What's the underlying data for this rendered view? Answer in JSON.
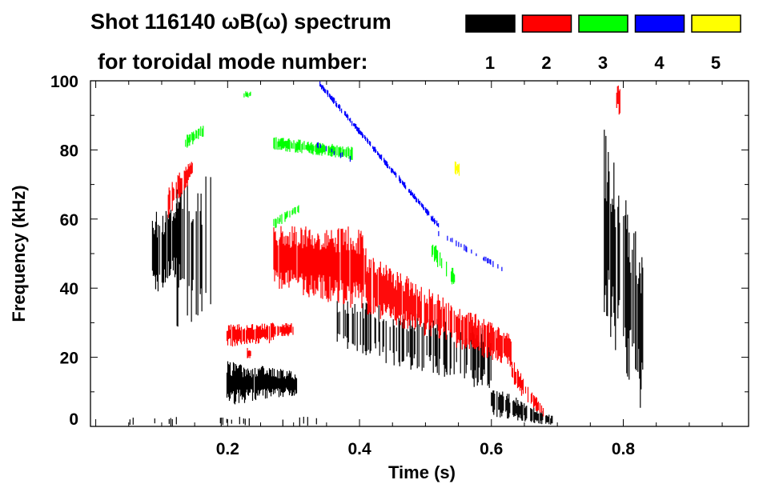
{
  "chart_data": {
    "type": "heatmap",
    "title": "Shot 116140 ωB(ω) spectrum",
    "subtitle": "for toroidal mode number:",
    "xlabel": "Time (s)",
    "ylabel": "Frequency (kHz)",
    "xlim": [
      -0.008,
      0.99
    ],
    "ylim": [
      0,
      100
    ],
    "xticks": [
      0.2,
      0.4,
      0.6,
      0.8
    ],
    "xtick_labels": [
      "0.2",
      "0.4",
      "0.6",
      "0.8"
    ],
    "yticks": [
      0,
      20,
      40,
      60,
      80,
      100
    ],
    "ytick_labels": [
      "0",
      "20",
      "40",
      "60",
      "80",
      "100"
    ],
    "legend": [
      {
        "label": "1",
        "color": "#000000"
      },
      {
        "label": "2",
        "color": "#ff0000"
      },
      {
        "label": "3",
        "color": "#00ff00"
      },
      {
        "label": "4",
        "color": "#0000ff"
      },
      {
        "label": "5",
        "color": "#ffff00"
      }
    ],
    "legend_placement": "top-right",
    "regions": [
      {
        "mode": 1,
        "t": [
          0.086,
          0.128
        ],
        "f_start": [
          37,
          62
        ],
        "f_end": [
          42,
          66
        ],
        "density": 0.9
      },
      {
        "mode": 1,
        "t": [
          0.116,
          0.177
        ],
        "f_start": [
          29,
          72
        ],
        "f_end": [
          28,
          75
        ],
        "density": 0.45
      },
      {
        "mode": 1,
        "t": [
          0.199,
          0.305
        ],
        "f_start": [
          6,
          19
        ],
        "f_end": [
          9,
          16
        ],
        "density": 0.95
      },
      {
        "mode": 1,
        "t": [
          0.365,
          0.6
        ],
        "f_start": [
          22,
          38
        ],
        "f_end": [
          10,
          28
        ],
        "density": 0.5
      },
      {
        "mode": 1,
        "t": [
          0.6,
          0.693
        ],
        "f_start": [
          3,
          12
        ],
        "f_end": [
          0,
          3
        ],
        "density": 0.8
      },
      {
        "mode": 1,
        "t": [
          0.77,
          0.83
        ],
        "f_start": [
          30,
          87
        ],
        "f_end": [
          3,
          50
        ],
        "density": 0.7
      },
      {
        "mode": 1,
        "t": [
          0.03,
          0.36
        ],
        "f_start": [
          0,
          3
        ],
        "f_end": [
          0,
          3
        ],
        "density": 0.08
      },
      {
        "mode": 2,
        "t": [
          0.11,
          0.147
        ],
        "f_start": [
          60,
          70
        ],
        "f_end": [
          72,
          78
        ],
        "density": 0.7
      },
      {
        "mode": 2,
        "t": [
          0.199,
          0.27
        ],
        "f_start": [
          23,
          30
        ],
        "f_end": [
          24,
          30
        ],
        "density": 0.9
      },
      {
        "mode": 2,
        "t": [
          0.23,
          0.235
        ],
        "f_start": [
          19,
          23
        ],
        "f_end": [
          19,
          23
        ],
        "density": 1.0
      },
      {
        "mode": 2,
        "t": [
          0.27,
          0.3
        ],
        "f_start": [
          26,
          30
        ],
        "f_end": [
          26,
          30
        ],
        "density": 0.9
      },
      {
        "mode": 2,
        "t": [
          0.27,
          0.41
        ],
        "f_start": [
          40,
          58
        ],
        "f_end": [
          33,
          58
        ],
        "density": 0.95
      },
      {
        "mode": 2,
        "t": [
          0.41,
          0.63
        ],
        "f_start": [
          32,
          50
        ],
        "f_end": [
          17,
          27
        ],
        "density": 0.8
      },
      {
        "mode": 2,
        "t": [
          0.63,
          0.68
        ],
        "f_start": [
          12,
          20
        ],
        "f_end": [
          2,
          5
        ],
        "density": 0.7
      },
      {
        "mode": 2,
        "t": [
          0.79,
          0.795
        ],
        "f_start": [
          90,
          100
        ],
        "f_end": [
          90,
          100
        ],
        "density": 1.0
      },
      {
        "mode": 3,
        "t": [
          0.135,
          0.165
        ],
        "f_start": [
          80,
          84
        ],
        "f_end": [
          84,
          88
        ],
        "density": 0.6
      },
      {
        "mode": 3,
        "t": [
          0.225,
          0.235
        ],
        "f_start": [
          95,
          97
        ],
        "f_end": [
          95,
          97
        ],
        "density": 0.8
      },
      {
        "mode": 3,
        "t": [
          0.27,
          0.39
        ],
        "f_start": [
          80,
          84
        ],
        "f_end": [
          77,
          81
        ],
        "density": 0.8
      },
      {
        "mode": 3,
        "t": [
          0.27,
          0.31
        ],
        "f_start": [
          57,
          60
        ],
        "f_end": [
          62,
          65
        ],
        "density": 0.6
      },
      {
        "mode": 3,
        "t": [
          0.51,
          0.545
        ],
        "f_start": [
          48,
          54
        ],
        "f_end": [
          40,
          45
        ],
        "density": 0.5
      },
      {
        "mode": 4,
        "t": [
          0.34,
          0.52
        ],
        "f_start": [
          98,
          100
        ],
        "f_end": [
          57,
          59
        ],
        "density": 0.8
      },
      {
        "mode": 4,
        "t": [
          0.52,
          0.62
        ],
        "f_start": [
          55,
          57
        ],
        "f_end": [
          44,
          46
        ],
        "density": 0.3
      },
      {
        "mode": 4,
        "t": [
          0.33,
          0.39
        ],
        "f_start": [
          81,
          83
        ],
        "f_end": [
          76,
          78
        ],
        "density": 0.2
      },
      {
        "mode": 5,
        "t": [
          0.545,
          0.552
        ],
        "f_start": [
          73,
          77
        ],
        "f_end": [
          72,
          76
        ],
        "density": 1.0
      }
    ]
  }
}
